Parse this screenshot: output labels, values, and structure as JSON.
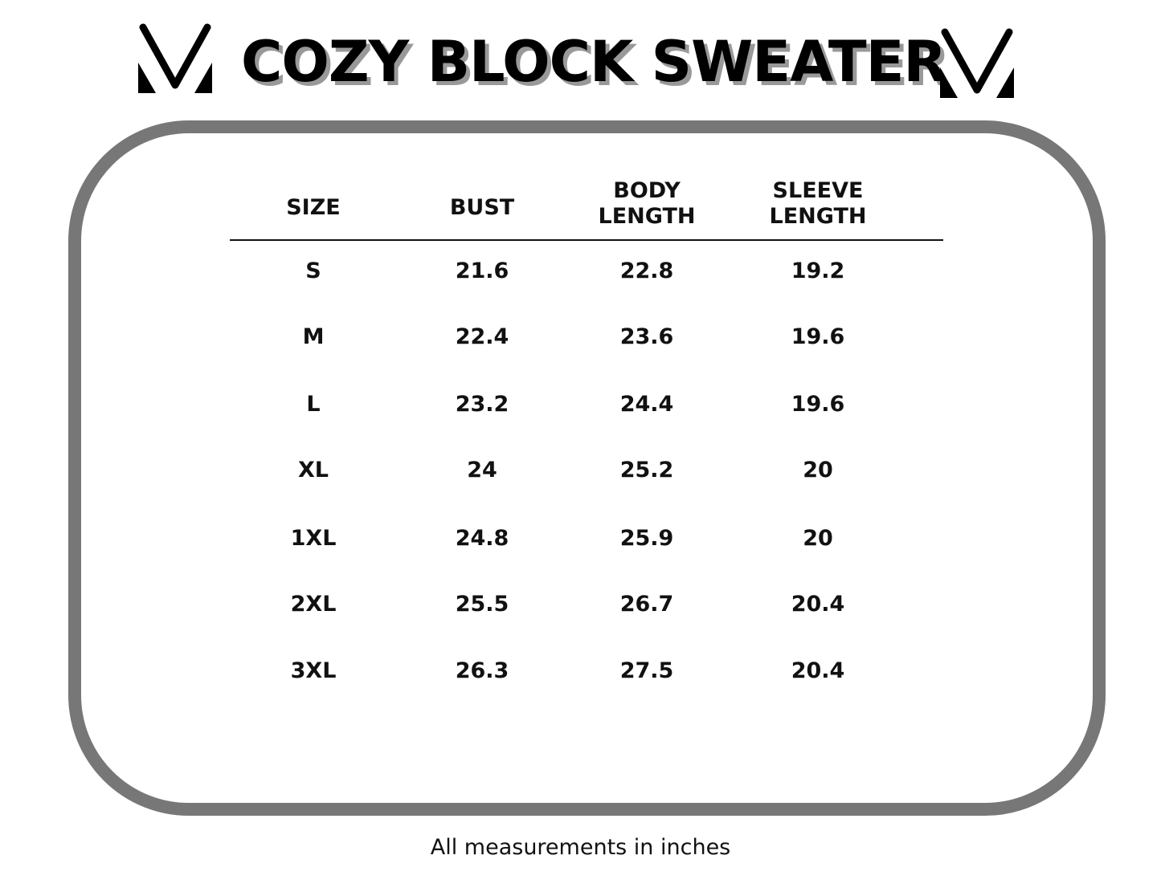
{
  "title": "COZY BLOCK SWEATER",
  "table": {
    "headers": [
      [
        "SIZE",
        ""
      ],
      [
        "BUST",
        ""
      ],
      [
        "BODY",
        "LENGTH"
      ],
      [
        "SLEEVE",
        "LENGTH"
      ]
    ],
    "rows": [
      [
        "S",
        "21.6",
        "22.8",
        "19.2"
      ],
      [
        "M",
        "22.4",
        "23.6",
        "19.6"
      ],
      [
        "L",
        "23.2",
        "24.4",
        "19.6"
      ],
      [
        "XL",
        "24",
        "25.2",
        "20"
      ],
      [
        "1XL",
        "24.8",
        "25.9",
        "20"
      ],
      [
        "2XL",
        "25.5",
        "26.7",
        "20.4"
      ],
      [
        "3XL",
        "26.3",
        "27.5",
        "20.4"
      ]
    ]
  },
  "note": "All measurements in inches",
  "colors": {
    "frame": "#777777",
    "text": "#111111",
    "title_shadow": "#999999"
  },
  "icons": [
    "brand-logo-icon"
  ]
}
